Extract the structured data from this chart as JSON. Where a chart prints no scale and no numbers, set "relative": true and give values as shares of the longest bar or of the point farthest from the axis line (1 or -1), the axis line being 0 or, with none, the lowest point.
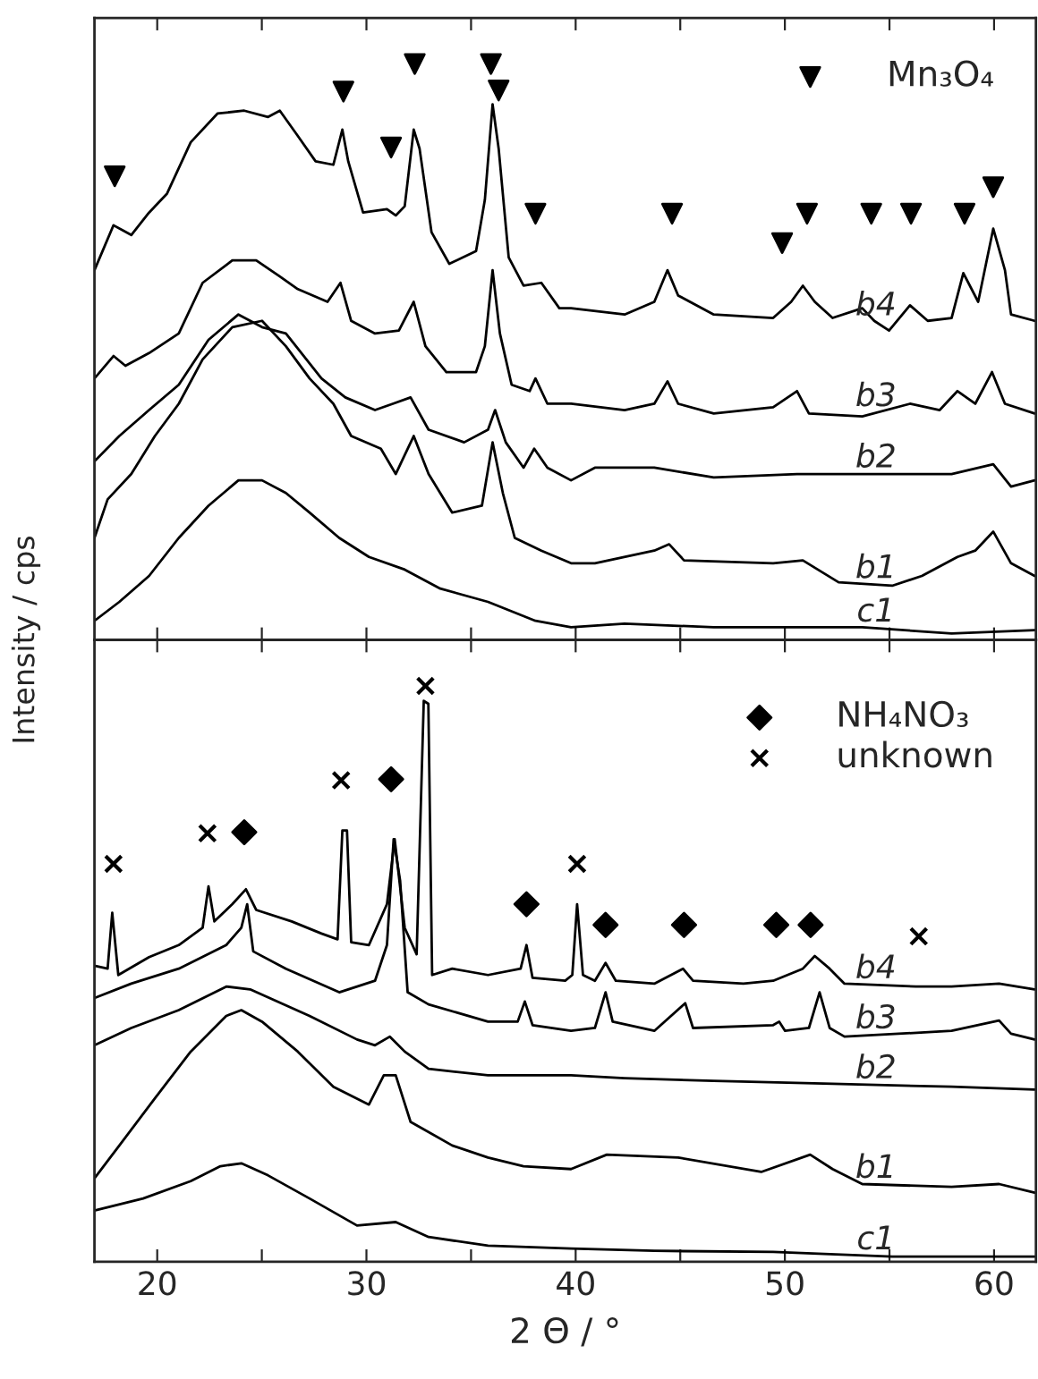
{
  "chart_data": [
    {
      "type": "line",
      "relative": true,
      "xlim": [
        17,
        62
      ],
      "xticks": [
        20,
        {
          "value": 25,
          "label": null
        },
        30,
        {
          "value": 35,
          "label": null
        },
        40,
        {
          "value": 45,
          "label": null
        },
        50,
        {
          "value": 55,
          "label": null
        },
        60
      ],
      "tick_labels": false,
      "legend": "top right",
      "grid": false,
      "ylabel": "Intensity / cps",
      "series": [
        {
          "name": "b4",
          "color": "#000000",
          "x": [
            17.0,
            17.91,
            18.76,
            19.61,
            20.47,
            21.6,
            22.88,
            24.16,
            25.3,
            25.86,
            26.72,
            27.57,
            28.42,
            28.85,
            29.13,
            29.84,
            30.98,
            31.4,
            31.83,
            32.26,
            32.54,
            33.11,
            33.96,
            35.24,
            35.66,
            36.03,
            36.32,
            36.8,
            37.51,
            38.36,
            39.22,
            39.78,
            42.34,
            43.76,
            44.39,
            44.9,
            46.6,
            49.44,
            50.3,
            50.86,
            51.43,
            52.28,
            53.7,
            54.27,
            54.98,
            55.98,
            56.83,
            57.97,
            58.53,
            59.24,
            59.96,
            60.52,
            60.81,
            61.94
          ],
          "values": [
            0.642,
            0.72,
            0.703,
            0.742,
            0.775,
            0.864,
            0.914,
            0.919,
            0.908,
            0.919,
            0.875,
            0.831,
            0.825,
            0.886,
            0.831,
            0.742,
            0.748,
            0.737,
            0.753,
            0.886,
            0.853,
            0.708,
            0.653,
            0.675,
            0.764,
            0.93,
            0.853,
            0.664,
            0.615,
            0.62,
            0.576,
            0.576,
            0.565,
            0.587,
            0.642,
            0.598,
            0.565,
            0.559,
            0.587,
            0.615,
            0.587,
            0.559,
            0.576,
            0.554,
            0.537,
            0.581,
            0.554,
            0.559,
            0.637,
            0.587,
            0.714,
            0.642,
            0.565,
            0.554
          ]
        },
        {
          "name": "b3",
          "color": "#000000",
          "x": [
            17.0,
            17.91,
            18.48,
            19.61,
            21.03,
            22.17,
            23.59,
            24.73,
            25.86,
            26.72,
            28.14,
            28.76,
            29.27,
            30.41,
            31.55,
            32.26,
            32.82,
            33.82,
            35.24,
            35.66,
            36.03,
            36.38,
            36.94,
            37.8,
            38.08,
            38.65,
            39.78,
            42.34,
            43.76,
            44.39,
            44.9,
            46.6,
            49.44,
            50.58,
            51.15,
            53.7,
            55.98,
            57.4,
            58.25,
            59.1,
            59.9,
            60.52,
            61.94
          ],
          "values": [
            0.454,
            0.493,
            0.476,
            0.498,
            0.532,
            0.62,
            0.659,
            0.659,
            0.631,
            0.609,
            0.587,
            0.62,
            0.554,
            0.532,
            0.537,
            0.587,
            0.51,
            0.465,
            0.465,
            0.51,
            0.642,
            0.532,
            0.443,
            0.432,
            0.454,
            0.41,
            0.41,
            0.399,
            0.41,
            0.449,
            0.41,
            0.393,
            0.404,
            0.432,
            0.393,
            0.388,
            0.41,
            0.399,
            0.432,
            0.41,
            0.465,
            0.41,
            0.393
          ]
        },
        {
          "name": "b2",
          "color": "#000000",
          "x": [
            17.0,
            18.19,
            19.61,
            21.03,
            22.45,
            23.88,
            25.01,
            26.15,
            27.85,
            28.99,
            30.41,
            31.26,
            32.11,
            32.97,
            34.67,
            35.81,
            36.15,
            36.66,
            37.51,
            38.02,
            38.65,
            39.78,
            40.92,
            43.76,
            46.6,
            50.58,
            53.7,
            56.26,
            57.97,
            59.96,
            60.81,
            61.94
          ],
          "values": [
            0.31,
            0.354,
            0.399,
            0.443,
            0.521,
            0.565,
            0.543,
            0.532,
            0.454,
            0.421,
            0.399,
            0.41,
            0.421,
            0.365,
            0.343,
            0.365,
            0.399,
            0.343,
            0.299,
            0.332,
            0.299,
            0.277,
            0.299,
            0.299,
            0.282,
            0.288,
            0.288,
            0.288,
            0.288,
            0.305,
            0.266,
            0.277
          ]
        },
        {
          "name": "b1",
          "color": "#000000",
          "x": [
            17.0,
            17.63,
            18.76,
            19.89,
            21.03,
            22.17,
            23.59,
            25.01,
            26.15,
            27.28,
            28.42,
            29.27,
            30.69,
            31.4,
            32.26,
            32.97,
            34.1,
            35.52,
            36.03,
            36.52,
            37.09,
            38.36,
            39.78,
            40.92,
            43.76,
            44.47,
            45.18,
            49.44,
            50.86,
            52.57,
            55.13,
            56.55,
            58.25,
            59.1,
            59.96,
            60.81,
            61.94
          ],
          "values": [
            0.177,
            0.244,
            0.288,
            0.354,
            0.41,
            0.487,
            0.543,
            0.554,
            0.51,
            0.454,
            0.41,
            0.354,
            0.332,
            0.288,
            0.354,
            0.288,
            0.221,
            0.233,
            0.343,
            0.255,
            0.177,
            0.155,
            0.133,
            0.133,
            0.155,
            0.166,
            0.138,
            0.133,
            0.138,
            0.1,
            0.094,
            0.111,
            0.144,
            0.155,
            0.188,
            0.133,
            0.111
          ]
        },
        {
          "name": "c1",
          "color": "#000000",
          "x": [
            17.0,
            18.19,
            19.61,
            21.03,
            22.45,
            23.88,
            25.01,
            26.15,
            27.28,
            28.7,
            30.12,
            31.83,
            33.53,
            35.81,
            38.08,
            39.78,
            42.34,
            46.6,
            50.86,
            53.7,
            57.97,
            61.94
          ],
          "values": [
            0.033,
            0.066,
            0.111,
            0.177,
            0.233,
            0.277,
            0.277,
            0.255,
            0.221,
            0.177,
            0.144,
            0.122,
            0.089,
            0.066,
            0.033,
            0.022,
            0.028,
            0.022,
            0.022,
            0.022,
            0.011,
            0.017
          ]
        },
        {
          "type": "scatter",
          "name": "Mn₃O₄",
          "marker": "triangle",
          "color": "#000000",
          "x": [
            17.97,
            28.9,
            31.18,
            32.31,
            35.95,
            36.32,
            38.08,
            44.61,
            49.87,
            51.06,
            54.13,
            56.03,
            58.59,
            59.96
          ],
          "values": [
            0.805,
            0.952,
            0.855,
            1,
            1,
            0.954,
            0.74,
            0.74,
            0.689,
            0.74,
            0.74,
            0.74,
            0.74,
            0.786
          ]
        }
      ]
    },
    {
      "type": "line",
      "relative": true,
      "xlim": [
        17,
        62
      ],
      "xticks": [
        20,
        {
          "value": 25,
          "label": null
        },
        30,
        {
          "value": 35,
          "label": null
        },
        40,
        {
          "value": 45,
          "label": null
        },
        50,
        {
          "value": 55,
          "label": null
        },
        60
      ],
      "tick_labels": "x",
      "legend": "top right",
      "grid": false,
      "xlabel": "2 Θ / °",
      "series": [
        {
          "name": "b4",
          "color": "#000000",
          "x": [
            17.0,
            17.63,
            17.85,
            18.14,
            19.61,
            21.03,
            22.17,
            22.45,
            22.73,
            23.59,
            24.24,
            24.73,
            26.43,
            27.85,
            28.62,
            28.85,
            29.07,
            29.27,
            30.12,
            30.98,
            31.35,
            31.83,
            32.4,
            32.74,
            32.96,
            33.14,
            34.1,
            35.81,
            37.37,
            37.65,
            37.94,
            39.5,
            39.84,
            40.07,
            40.35,
            40.92,
            41.43,
            41.92,
            43.76,
            45.13,
            45.61,
            48.02,
            49.44,
            50.86,
            51.43,
            52.14,
            52.85,
            56.26,
            57.97,
            60.24,
            61.94
          ],
          "values": [
            0.514,
            0.509,
            0.606,
            0.498,
            0.529,
            0.55,
            0.58,
            0.652,
            0.591,
            0.621,
            0.647,
            0.611,
            0.591,
            0.57,
            0.56,
            0.749,
            0.749,
            0.555,
            0.55,
            0.621,
            0.734,
            0.58,
            0.534,
            0.974,
            0.969,
            0.498,
            0.509,
            0.498,
            0.509,
            0.55,
            0.493,
            0.488,
            0.498,
            0.621,
            0.498,
            0.488,
            0.519,
            0.488,
            0.483,
            0.509,
            0.488,
            0.483,
            0.488,
            0.509,
            0.531,
            0.509,
            0.483,
            0.478,
            0.478,
            0.483,
            0.473
          ]
        },
        {
          "name": "b3",
          "color": "#000000",
          "x": [
            17.0,
            18.76,
            21.03,
            23.3,
            24.02,
            24.3,
            24.59,
            26.15,
            28.7,
            30.41,
            30.98,
            31.3,
            31.61,
            31.97,
            32.97,
            35.81,
            37.23,
            37.57,
            37.94,
            39.78,
            40.92,
            41.43,
            41.77,
            43.76,
            45.24,
            45.61,
            49.44,
            49.73,
            50.01,
            51.15,
            51.66,
            52.14,
            52.85,
            57.97,
            60.24,
            60.81,
            61.94
          ],
          "values": [
            0.458,
            0.483,
            0.509,
            0.55,
            0.58,
            0.621,
            0.539,
            0.509,
            0.468,
            0.488,
            0.55,
            0.734,
            0.662,
            0.468,
            0.447,
            0.417,
            0.417,
            0.452,
            0.411,
            0.401,
            0.406,
            0.468,
            0.417,
            0.401,
            0.449,
            0.406,
            0.411,
            0.417,
            0.401,
            0.406,
            0.468,
            0.406,
            0.391,
            0.401,
            0.419,
            0.396,
            0.386
          ]
        },
        {
          "name": "b2",
          "color": "#000000",
          "x": [
            17.0,
            18.76,
            21.03,
            23.3,
            24.44,
            27.28,
            29.55,
            30.41,
            31.12,
            31.83,
            32.97,
            35.81,
            39.78,
            42.34,
            46.6,
            52.28,
            57.97,
            61.94
          ],
          "values": [
            0.376,
            0.406,
            0.437,
            0.478,
            0.473,
            0.427,
            0.386,
            0.376,
            0.391,
            0.365,
            0.335,
            0.324,
            0.324,
            0.319,
            0.314,
            0.309,
            0.304,
            0.299
          ]
        },
        {
          "name": "b1",
          "color": "#000000",
          "x": [
            17.0,
            18.19,
            19.89,
            21.6,
            23.3,
            24.02,
            25.01,
            26.72,
            28.42,
            30.12,
            30.83,
            31.4,
            32.11,
            34.1,
            35.81,
            37.51,
            39.78,
            41.49,
            44.9,
            48.87,
            51.21,
            52.28,
            53.7,
            57.97,
            60.24,
            61.94
          ],
          "values": [
            0.145,
            0.202,
            0.284,
            0.365,
            0.427,
            0.437,
            0.417,
            0.365,
            0.304,
            0.273,
            0.324,
            0.324,
            0.243,
            0.202,
            0.181,
            0.166,
            0.161,
            0.186,
            0.181,
            0.156,
            0.186,
            0.161,
            0.135,
            0.13,
            0.135,
            0.12
          ]
        },
        {
          "name": "c1",
          "color": "#000000",
          "x": [
            17.0,
            19.33,
            21.6,
            23.02,
            24.02,
            25.3,
            27.28,
            29.55,
            31.4,
            32.97,
            35.81,
            39.78,
            43.76,
            49.44,
            55.13,
            61.94
          ],
          "values": [
            0.089,
            0.11,
            0.14,
            0.166,
            0.171,
            0.15,
            0.11,
            0.063,
            0.069,
            0.043,
            0.028,
            0.023,
            0.019,
            0.017,
            0.009,
            0.009
          ]
        },
        {
          "type": "scatter",
          "name": "NH₄NO₃",
          "marker": "diamond",
          "color": "#000000",
          "x": [
            24.16,
            31.18,
            37.65,
            41.43,
            45.18,
            49.59,
            51.23
          ],
          "values": [
            0.746,
            0.838,
            0.621,
            0.585,
            0.585,
            0.585,
            0.585
          ]
        },
        {
          "type": "scatter",
          "name": "unknown",
          "marker": "cross",
          "color": "#000000",
          "x": [
            17.91,
            22.4,
            28.79,
            32.82,
            40.07,
            56.4
          ],
          "values": [
            0.691,
            0.744,
            0.836,
            1,
            0.691,
            0.565
          ]
        }
      ]
    }
  ]
}
